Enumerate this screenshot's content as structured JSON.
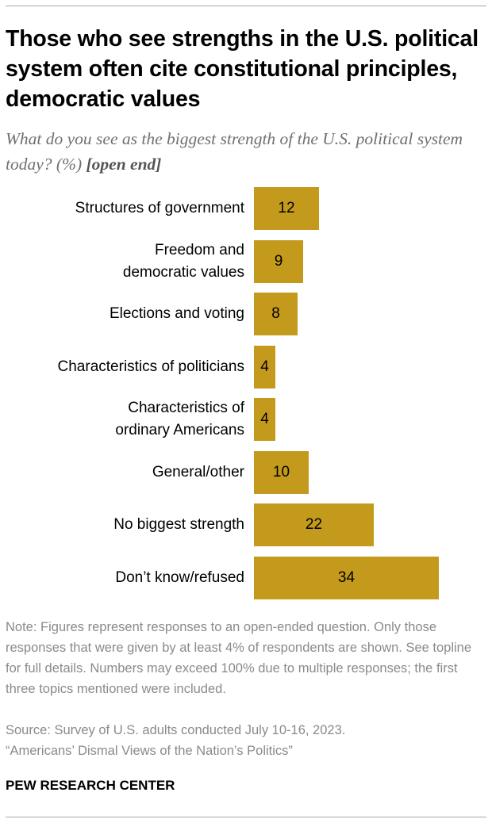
{
  "title": "Those who see strengths in the U.S. political system often cite constitutional principles, democratic values",
  "subtitle": "What do you see as the biggest strength of the U.S. political system today? (%)",
  "subtitle_tag": "[open end]",
  "note": "Note: Figures represent responses to an open-ended question. Only those responses that were given by at least 4% of respondents are shown. See topline for full details. Numbers may exceed 100% due to multiple responses; the first three topics mentioned were included.",
  "source": {
    "line1": "Source: Survey of U.S. adults conducted July 10-16, 2023.",
    "line2": "“Americans’ Dismal Views of the Nation’s Politics”"
  },
  "organization": "PEW RESEARCH CENTER",
  "colors": {
    "bar": "#c49a1c",
    "note_text": "#8a8a8a",
    "subtitle_text": "#707070"
  },
  "chart_data": {
    "type": "bar",
    "orientation": "horizontal",
    "categories": [
      "Structures of government",
      "Freedom and\ndemocratic values",
      "Elections and voting",
      "Characteristics of politicians",
      "Characteristics of\nordinary Americans",
      "General/other",
      "No biggest strength",
      "Don’t know/refused"
    ],
    "values": [
      12,
      9,
      8,
      4,
      4,
      10,
      22,
      34
    ],
    "value_labels": [
      "12",
      "9",
      "8",
      "4",
      "4",
      "10",
      "22",
      "34"
    ],
    "xlim": [
      0,
      34
    ],
    "grid": false,
    "legend": "none"
  }
}
